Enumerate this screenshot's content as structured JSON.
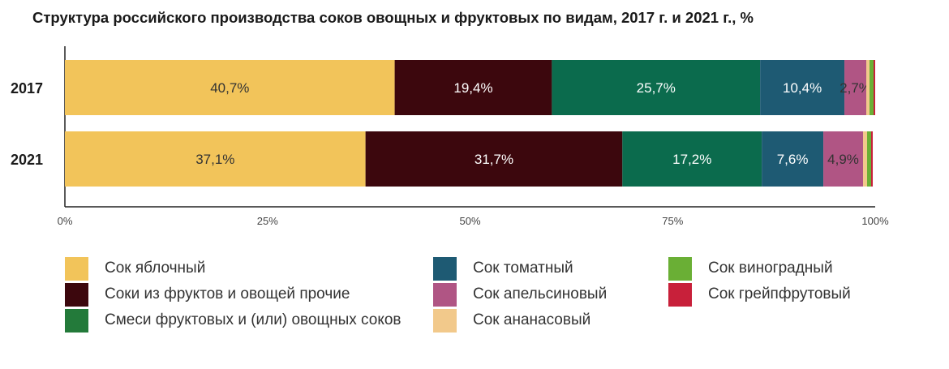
{
  "title": "Структура российского производства соков овощных и фруктовых по видам, 2017 г. и 2021 г., %",
  "chart_data": {
    "type": "bar",
    "orientation": "horizontal",
    "stacked": true,
    "categories": [
      "2017",
      "2021"
    ],
    "xlim": [
      0,
      100
    ],
    "xticks": [
      "0%",
      "25%",
      "50%",
      "75%",
      "100%"
    ],
    "xtick_values": [
      0,
      25,
      50,
      75,
      100
    ],
    "grid": false,
    "legend_position": "bottom",
    "series": [
      {
        "name": "Сок яблочный",
        "color": "#F2C45A",
        "values": [
          40.7,
          37.1
        ],
        "labels": [
          "40,7%",
          "37,1%"
        ],
        "label_color": "#333333"
      },
      {
        "name": "Соки из фруктов и овощей прочие",
        "color": "#3C070D",
        "values": [
          19.4,
          31.7
        ],
        "labels": [
          "19,4%",
          "31,7%"
        ],
        "label_color": "#ffffff"
      },
      {
        "name": "Смеси фруктовых и (или) овощных соков",
        "color": "#0B6B4D",
        "values": [
          25.7,
          17.2
        ],
        "labels": [
          "25,7%",
          "17,2%"
        ],
        "label_color": "#ffffff"
      },
      {
        "name": "Сок томатный",
        "color": "#1E5A73",
        "values": [
          10.4,
          7.6
        ],
        "labels": [
          "10,4%",
          "7,6%"
        ],
        "label_color": "#ffffff"
      },
      {
        "name": "Сок апельсиновый",
        "color": "#B05584",
        "values": [
          2.7,
          4.9
        ],
        "labels": [
          "2,7%",
          "4,9%"
        ],
        "label_color": "#333333"
      },
      {
        "name": "Сок ананасовый",
        "color": "#F2C98B",
        "values": [
          0.4,
          0.5
        ],
        "labels": [
          "",
          ""
        ],
        "label_color": "#333333"
      },
      {
        "name": "Сок виноградный",
        "color": "#6AAF35",
        "values": [
          0.5,
          0.5
        ],
        "labels": [
          "",
          ""
        ],
        "label_color": "#333333"
      },
      {
        "name": "Сок грейпфрутовый",
        "color": "#C8203A",
        "values": [
          0.2,
          0.2
        ],
        "labels": [
          "",
          ""
        ],
        "label_color": "#333333"
      }
    ]
  },
  "legend": {
    "items": [
      {
        "label": "Сок яблочный",
        "color": "#F2C45A"
      },
      {
        "label": "Соки из фруктов и овощей прочие",
        "color": "#3C070D"
      },
      {
        "label": "Смеси фруктовых и (или) овощных соков",
        "color": "#237A3A"
      },
      {
        "label": "Сок томатный",
        "color": "#1E5A73"
      },
      {
        "label": "Сок апельсиновый",
        "color": "#B05584"
      },
      {
        "label": "Сок ананасовый",
        "color": "#F2C98B"
      },
      {
        "label": "Сок виноградный",
        "color": "#6AAF35"
      },
      {
        "label": "Сок грейпфрутовый",
        "color": "#C8203A"
      }
    ]
  }
}
